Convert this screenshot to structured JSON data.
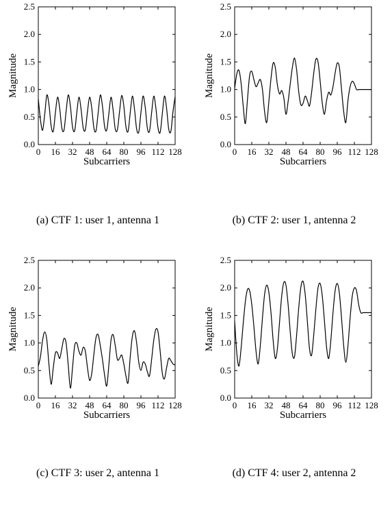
{
  "chart_data": [
    {
      "type": "line",
      "caption": "(a) CTF 1: user 1, antenna 1",
      "xlabel": "Subcarriers",
      "ylabel": "Magnitude",
      "xlim": [
        0,
        128
      ],
      "ylim": [
        0,
        2.5
      ],
      "xticks": [
        "0",
        "16",
        "32",
        "48",
        "64",
        "80",
        "96",
        "112",
        "128"
      ],
      "yticks": [
        "0.0",
        "0.5",
        "1.0",
        "1.5",
        "2.0",
        "2.5"
      ],
      "grid": false,
      "series": [
        {
          "x": [
            0,
            2,
            4,
            6,
            8,
            10,
            12,
            14,
            16,
            18,
            20,
            22,
            24,
            26,
            28,
            30,
            32,
            34,
            36,
            38,
            40,
            42,
            44,
            46,
            48,
            50,
            52,
            54,
            56,
            58,
            60,
            62,
            64,
            66,
            68,
            70,
            72,
            74,
            76,
            78,
            80,
            82,
            84,
            86,
            88,
            90,
            92,
            94,
            96,
            98,
            100,
            102,
            104,
            106,
            108,
            110,
            112,
            114,
            116,
            118,
            120,
            122,
            124,
            126,
            128
          ],
          "y": [
            0.83,
            0.45,
            0.26,
            0.55,
            0.9,
            0.72,
            0.34,
            0.24,
            0.58,
            0.86,
            0.66,
            0.3,
            0.26,
            0.6,
            0.9,
            0.7,
            0.32,
            0.25,
            0.58,
            0.86,
            0.64,
            0.3,
            0.27,
            0.6,
            0.86,
            0.66,
            0.3,
            0.25,
            0.58,
            0.9,
            0.7,
            0.33,
            0.26,
            0.56,
            0.86,
            0.62,
            0.28,
            0.27,
            0.6,
            0.89,
            0.7,
            0.32,
            0.24,
            0.58,
            0.88,
            0.64,
            0.28,
            0.23,
            0.58,
            0.88,
            0.68,
            0.3,
            0.24,
            0.58,
            0.88,
            0.66,
            0.3,
            0.22,
            0.56,
            0.88,
            0.66,
            0.28,
            0.24,
            0.6,
            0.87
          ]
        }
      ]
    },
    {
      "type": "line",
      "caption": "(b) CTF 2: user 1, antenna 2",
      "xlabel": "Subcarriers",
      "ylabel": "Magnitude",
      "xlim": [
        0,
        128
      ],
      "ylim": [
        0,
        2.5
      ],
      "xticks": [
        "0",
        "16",
        "32",
        "48",
        "64",
        "80",
        "96",
        "112",
        "128"
      ],
      "yticks": [
        "0.0",
        "0.5",
        "1.0",
        "1.5",
        "2.0",
        "2.5"
      ],
      "grid": false,
      "series": [
        {
          "x": [
            0,
            2,
            4,
            6,
            8,
            10,
            12,
            14,
            16,
            18,
            20,
            22,
            24,
            26,
            28,
            30,
            32,
            34,
            36,
            38,
            40,
            42,
            44,
            46,
            48,
            50,
            52,
            54,
            56,
            58,
            60,
            62,
            64,
            66,
            68,
            70,
            72,
            74,
            76,
            78,
            80,
            82,
            84,
            86,
            88,
            90,
            92,
            94,
            96,
            98,
            100,
            102,
            104,
            106,
            108,
            110,
            112,
            114,
            116,
            118,
            120,
            122,
            124,
            126,
            128
          ],
          "y": [
            1.02,
            1.28,
            1.35,
            1.12,
            0.7,
            0.38,
            0.82,
            1.25,
            1.33,
            1.18,
            1.05,
            1.12,
            1.18,
            1.0,
            0.6,
            0.4,
            0.78,
            1.2,
            1.48,
            1.4,
            1.08,
            0.92,
            0.98,
            0.85,
            0.55,
            0.78,
            1.1,
            1.4,
            1.57,
            1.35,
            0.95,
            0.72,
            0.75,
            0.88,
            0.8,
            0.7,
            0.95,
            1.3,
            1.55,
            1.5,
            1.15,
            0.75,
            0.55,
            0.8,
            0.95,
            0.9,
            1.05,
            1.3,
            1.48,
            1.4,
            1.0,
            0.6,
            0.4,
            0.8,
            1.05,
            1.15,
            1.1,
            1.0,
            1.0,
            1.0,
            1.0,
            1.0,
            1.0,
            1.0,
            1.0
          ]
        }
      ]
    },
    {
      "type": "line",
      "caption": "(c) CTF 3: user 2, antenna 1",
      "xlabel": "Subcarriers",
      "ylabel": "Magnitude",
      "xlim": [
        0,
        128
      ],
      "ylim": [
        0,
        2.5
      ],
      "xticks": [
        "0",
        "16",
        "32",
        "48",
        "64",
        "80",
        "96",
        "112",
        "128"
      ],
      "yticks": [
        "0.0",
        "0.5",
        "1.0",
        "1.5",
        "2.0",
        "2.5"
      ],
      "grid": false,
      "series": [
        {
          "x": [
            0,
            2,
            4,
            6,
            8,
            10,
            12,
            14,
            16,
            18,
            20,
            22,
            24,
            26,
            28,
            30,
            32,
            34,
            36,
            38,
            40,
            42,
            44,
            46,
            48,
            50,
            52,
            54,
            56,
            58,
            60,
            62,
            64,
            66,
            68,
            70,
            72,
            74,
            76,
            78,
            80,
            82,
            84,
            86,
            88,
            90,
            92,
            94,
            96,
            98,
            100,
            102,
            104,
            106,
            108,
            110,
            112,
            114,
            116,
            118,
            120,
            122,
            124,
            126,
            128
          ],
          "y": [
            0.58,
            0.75,
            1.05,
            1.2,
            1.05,
            0.6,
            0.25,
            0.55,
            0.82,
            0.82,
            0.72,
            0.9,
            1.08,
            1.0,
            0.6,
            0.18,
            0.55,
            0.95,
            1.0,
            0.85,
            0.78,
            0.92,
            0.85,
            0.55,
            0.32,
            0.45,
            0.8,
            1.1,
            1.15,
            0.95,
            0.7,
            0.42,
            0.22,
            0.6,
            1.05,
            1.15,
            0.95,
            0.7,
            0.72,
            0.78,
            0.62,
            0.4,
            0.28,
            0.75,
            1.12,
            1.22,
            1.0,
            0.65,
            0.5,
            0.65,
            0.62,
            0.48,
            0.4,
            0.7,
            1.05,
            1.25,
            1.2,
            0.85,
            0.45,
            0.35,
            0.55,
            0.72,
            0.68,
            0.62,
            0.6
          ]
        }
      ]
    },
    {
      "type": "line",
      "caption": "(d) CTF 4: user 2, antenna 2",
      "xlabel": "Subcarriers",
      "ylabel": "Magnitude",
      "xlim": [
        0,
        128
      ],
      "ylim": [
        0,
        2.5
      ],
      "xticks": [
        "0",
        "16",
        "32",
        "48",
        "64",
        "80",
        "96",
        "112",
        "128"
      ],
      "yticks": [
        "0.0",
        "0.5",
        "1.0",
        "1.5",
        "2.0",
        "2.5"
      ],
      "grid": false,
      "series": [
        {
          "x": [
            0,
            2,
            4,
            6,
            8,
            10,
            12,
            14,
            16,
            18,
            20,
            22,
            24,
            26,
            28,
            30,
            32,
            34,
            36,
            38,
            40,
            42,
            44,
            46,
            48,
            50,
            52,
            54,
            56,
            58,
            60,
            62,
            64,
            66,
            68,
            70,
            72,
            74,
            76,
            78,
            80,
            82,
            84,
            86,
            88,
            90,
            92,
            94,
            96,
            98,
            100,
            102,
            104,
            106,
            108,
            110,
            112,
            114,
            116,
            118,
            120,
            122,
            124,
            126,
            128
          ],
          "y": [
            1.4,
            0.82,
            0.58,
            0.9,
            1.35,
            1.75,
            1.97,
            1.95,
            1.7,
            1.3,
            0.85,
            0.62,
            0.95,
            1.45,
            1.88,
            2.05,
            1.92,
            1.55,
            1.05,
            0.72,
            0.9,
            1.38,
            1.85,
            2.1,
            2.05,
            1.7,
            1.2,
            0.8,
            0.75,
            1.15,
            1.65,
            2.02,
            2.12,
            1.88,
            1.4,
            0.9,
            0.78,
            1.15,
            1.62,
            2.0,
            2.08,
            1.85,
            1.4,
            0.92,
            0.72,
            1.05,
            1.55,
            1.95,
            2.08,
            1.9,
            1.45,
            0.95,
            0.65,
            0.95,
            1.45,
            1.85,
            2.0,
            1.95,
            1.7,
            1.55,
            1.55,
            1.55,
            1.55,
            1.55,
            1.55
          ]
        }
      ]
    }
  ]
}
